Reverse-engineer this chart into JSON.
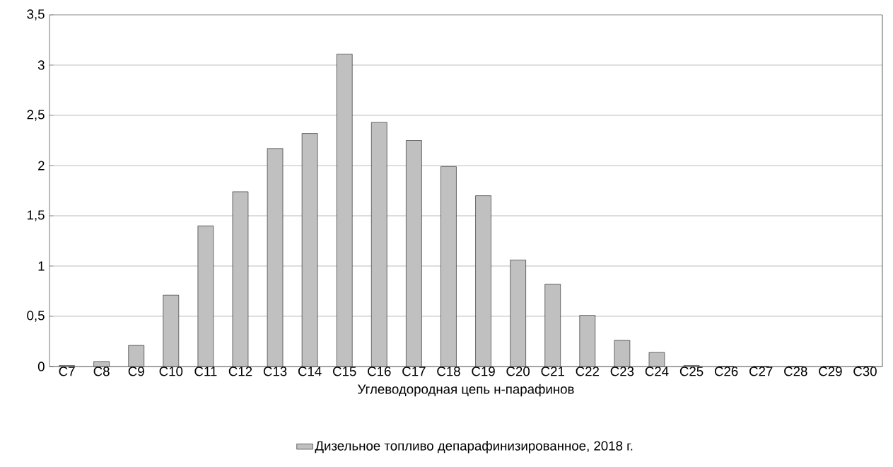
{
  "chart_data": {
    "type": "bar",
    "xlabel": "Углеводородная цепь н-парафинов",
    "categories": [
      "C7",
      "C8",
      "C9",
      "C10",
      "C11",
      "C12",
      "C13",
      "C14",
      "C15",
      "C16",
      "C17",
      "C18",
      "C19",
      "C20",
      "C21",
      "C22",
      "C23",
      "C24",
      "C25",
      "C26",
      "C27",
      "C28",
      "C29",
      "C30"
    ],
    "series": [
      {
        "name": "Дизельное топливо депарафинизированное, 2018 г.",
        "color": "#c0c0c0",
        "values": [
          0.01,
          0.05,
          0.21,
          0.71,
          1.4,
          1.74,
          2.17,
          2.32,
          3.11,
          2.43,
          2.25,
          1.99,
          1.7,
          1.06,
          0.82,
          0.51,
          0.26,
          0.14,
          0.01,
          0,
          0,
          0,
          0,
          0
        ]
      }
    ],
    "ylim": [
      0,
      3.5
    ],
    "yticks": [
      0,
      {
        "value": 0.5,
        "label": "0,5"
      },
      1,
      {
        "value": 1.5,
        "label": "1,5"
      },
      2,
      {
        "value": 2.5,
        "label": "2,5"
      },
      3,
      {
        "value": 3.5,
        "label": "3,5"
      }
    ],
    "grid": "y",
    "legend": "bottom"
  }
}
